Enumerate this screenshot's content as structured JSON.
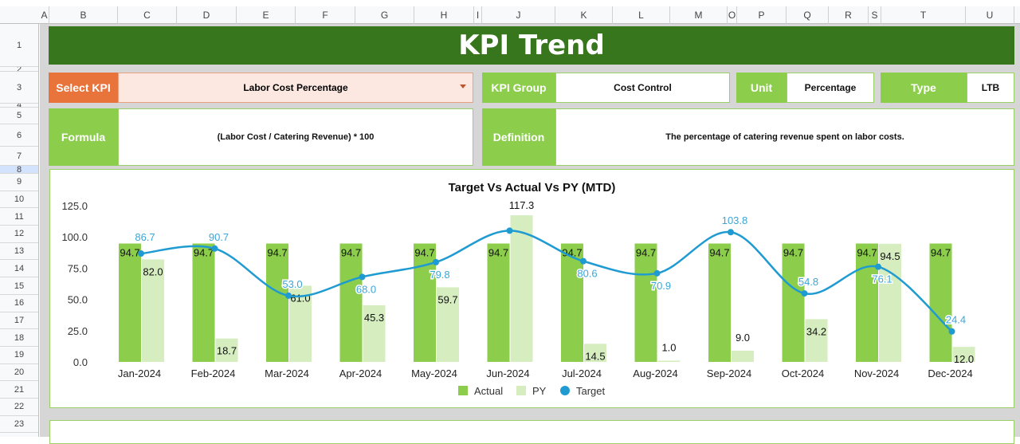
{
  "sheet": {
    "columns": [
      "A",
      "B",
      "C",
      "D",
      "E",
      "F",
      "G",
      "H",
      "I",
      "J",
      "K",
      "L",
      "M",
      "O",
      "P",
      "Q",
      "R",
      "S",
      "T",
      "U"
    ],
    "rows": [
      "1",
      "2",
      "3",
      "4",
      "5",
      "6",
      "7",
      "8",
      "9",
      "10",
      "11",
      "12",
      "13",
      "14",
      "15",
      "16",
      "17",
      "18",
      "19",
      "20",
      "21",
      "22",
      "23"
    ]
  },
  "dashboard": {
    "title": "KPI Trend",
    "select_kpi_label": "Select KPI",
    "select_kpi_value": "Labor Cost Percentage",
    "kpi_group_label": "KPI Group",
    "kpi_group_value": "Cost Control",
    "unit_label": "Unit",
    "unit_value": "Percentage",
    "type_label": "Type",
    "type_value": "LTB",
    "formula_label": "Formula",
    "formula_value": "(Labor Cost / Catering Revenue) * 100",
    "definition_label": "Definition",
    "definition_value": "The percentage of catering revenue spent on labor costs."
  },
  "colors": {
    "title_bg": "#38761d",
    "select_bg": "#e8743b",
    "label_bg": "#8cce4c",
    "actual": "#8cce4c",
    "py": "#d5edbf",
    "target": "#1f9bd1"
  },
  "chart_data": {
    "type": "bar",
    "title": "Target Vs Actual Vs PY (MTD)",
    "categories": [
      "Jan-2024",
      "Feb-2024",
      "Mar-2024",
      "Apr-2024",
      "May-2024",
      "Jun-2024",
      "Jul-2024",
      "Aug-2024",
      "Sep-2024",
      "Oct-2024",
      "Nov-2024",
      "Dec-2024"
    ],
    "ylim": [
      0,
      125
    ],
    "yticks": [
      "0.0",
      "25.0",
      "50.0",
      "75.0",
      "100.0",
      "125.0"
    ],
    "legend_position": "bottom",
    "series": [
      {
        "name": "Actual",
        "type": "bar",
        "values": [
          94.7,
          94.7,
          94.7,
          94.7,
          94.7,
          94.7,
          94.7,
          94.7,
          94.7,
          94.7,
          94.7,
          94.7
        ],
        "labels": [
          "94.7",
          "94.7",
          "94.7",
          "94.7",
          "94.7",
          "94.7",
          "94.7",
          "94.7",
          "94.7",
          "94.7",
          "94.7",
          "94.7"
        ]
      },
      {
        "name": "PY",
        "type": "bar",
        "values": [
          82.0,
          18.7,
          61.0,
          45.3,
          59.7,
          117.3,
          14.5,
          1.0,
          9.0,
          34.2,
          94.5,
          12.0
        ],
        "labels": [
          "82.0",
          "18.7",
          "61.0",
          "45.3",
          "59.7",
          "117.3",
          "14.5",
          "1.0",
          "9.0",
          "34.2",
          "94.5",
          "12.0"
        ]
      },
      {
        "name": "Target",
        "type": "line",
        "smooth": true,
        "values": [
          86.7,
          90.7,
          53.0,
          68.0,
          79.8,
          105.0,
          80.6,
          70.9,
          103.8,
          54.8,
          76.1,
          24.4
        ],
        "labels": [
          "86.7",
          "90.7",
          "53.0",
          "68.0",
          "79.8",
          "",
          "80.6",
          "70.9",
          "103.8",
          "54.8",
          "76.1",
          "24.4"
        ]
      }
    ]
  }
}
